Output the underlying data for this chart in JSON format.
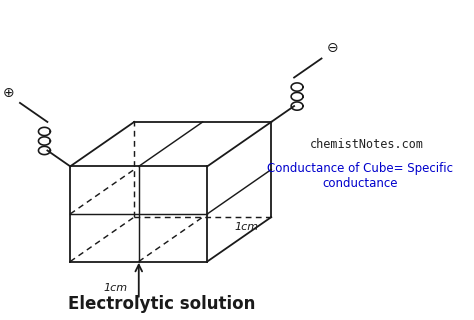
{
  "bg_color": "#ffffff",
  "cube_color": "#1a1a1a",
  "text_website": "chemistNotes.com",
  "text_conductance": "Conductance of Cube= Specific\nconductance",
  "text_label_bottom": "1cm",
  "text_label_right": "1cm",
  "text_solution": "Electrolytic solution",
  "plus_symbol": "⊕",
  "minus_symbol": "⊖",
  "website_color": "#222222",
  "conductance_color": "#0000cc",
  "solution_fontsize": 12,
  "website_fontsize": 8.5,
  "conductance_fontsize": 8.5,
  "lw": 1.3
}
